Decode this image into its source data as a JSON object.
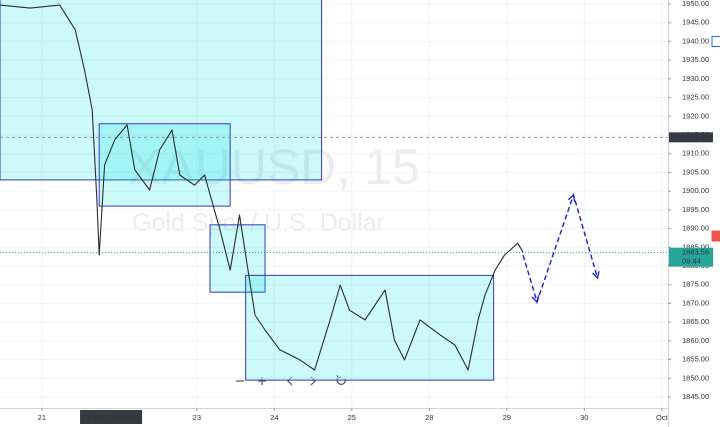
{
  "chart_data": {
    "type": "line",
    "title": "XAUUSD, 15",
    "subtitle": "Gold Spot / U.S. Dollar",
    "color": "#2b2b2b",
    "x": [
      -0.54,
      -0.15,
      0.23,
      0.43,
      0.55,
      0.65,
      0.71,
      0.74,
      0.81,
      0.94,
      1.1,
      1.2,
      1.39,
      1.52,
      1.68,
      1.78,
      1.97,
      2.1,
      2.19,
      2.3,
      2.43,
      2.55,
      2.66,
      2.75,
      2.88,
      3.07,
      3.33,
      3.52,
      3.72,
      3.85,
      3.97,
      4.17,
      4.43,
      4.55,
      4.68,
      4.88,
      5.14,
      5.33,
      5.5,
      5.63,
      5.72,
      5.85,
      5.97,
      6.14,
      6.21
    ],
    "values": [
      1949.7,
      1948.9,
      1949.7,
      1943.1,
      1932.4,
      1921.7,
      1897.6,
      1882.9,
      1907.0,
      1913.7,
      1917.7,
      1905.7,
      1900.3,
      1911.0,
      1916.3,
      1904.3,
      1901.6,
      1904.3,
      1897.6,
      1889.6,
      1878.9,
      1893.6,
      1878.9,
      1866.9,
      1862.9,
      1857.6,
      1854.9,
      1852.2,
      1865.6,
      1874.9,
      1868.2,
      1865.6,
      1873.6,
      1860.2,
      1854.9,
      1865.6,
      1861.6,
      1858.9,
      1852.2,
      1865.6,
      1872.3,
      1878.9,
      1882.9,
      1886.1,
      1883.7
    ],
    "xlim": [
      -0.54,
      8.08
    ],
    "ylim": [
      1842.06,
      1951.07
    ],
    "grid": true,
    "xticks": [
      {
        "value": 0,
        "label": "21"
      },
      {
        "value": 2,
        "label": "23"
      },
      {
        "value": 3,
        "label": "24"
      },
      {
        "value": 4,
        "label": "25"
      },
      {
        "value": 5,
        "label": "28"
      },
      {
        "value": 6,
        "label": "29"
      },
      {
        "value": 7,
        "label": "30"
      },
      {
        "value": 8,
        "label": "Oct"
      }
    ],
    "yticks": [
      {
        "value": 1845,
        "label": "1845.00"
      },
      {
        "value": 1850,
        "label": "1850.00"
      },
      {
        "value": 1855,
        "label": "1855.00"
      },
      {
        "value": 1860,
        "label": "1860.00"
      },
      {
        "value": 1865,
        "label": "1865.00"
      },
      {
        "value": 1870,
        "label": "1870.00"
      },
      {
        "value": 1875,
        "label": "1875.00"
      },
      {
        "value": 1880,
        "label": "1880.00"
      },
      {
        "value": 1885,
        "label": "1885.00"
      },
      {
        "value": 1890,
        "label": "1890.00"
      },
      {
        "value": 1895,
        "label": "1895.00"
      },
      {
        "value": 1900,
        "label": "1900.00"
      },
      {
        "value": 1905,
        "label": "1905.00"
      },
      {
        "value": 1910,
        "label": "1910.00"
      },
      {
        "value": 1915,
        "label": "1915.00"
      },
      {
        "value": 1920,
        "label": "1920.00"
      },
      {
        "value": 1925,
        "label": "1925.00"
      },
      {
        "value": 1930,
        "label": "1930.00"
      },
      {
        "value": 1935,
        "label": "1935.00"
      },
      {
        "value": 1940,
        "label": "1940.00"
      },
      {
        "value": 1945,
        "label": "1945.00"
      },
      {
        "value": 1950,
        "label": "1950.00"
      }
    ],
    "crosshair": {
      "price": 1914.38,
      "x": 0.88,
      "date_label": "21 Sep '20",
      "time_label": "21:00"
    },
    "last_price": {
      "value": 1883.56,
      "countdown": "09:44",
      "color": "#26a69a"
    },
    "price_markers": [
      {
        "value": 1888,
        "color": "#ef5350"
      },
      {
        "value": 1940,
        "color": "#2962ff"
      }
    ],
    "rectangles": [
      {
        "x": [
          -0.54,
          3.61
        ],
        "y": [
          1903,
          1960
        ]
      },
      {
        "x": [
          0.74,
          2.43
        ],
        "y": [
          1896,
          1918
        ]
      },
      {
        "x": [
          2.17,
          2.88
        ],
        "y": [
          1873,
          1891
        ]
      },
      {
        "x": [
          2.63,
          5.83
        ],
        "y": [
          1849.5,
          1877.5
        ]
      }
    ],
    "rect_fill": "rgba(0,225,225,0.2)",
    "rect_border": "#3535c8",
    "forecast": {
      "x": [
        6.21,
        6.39,
        6.86,
        7.17
      ],
      "y": [
        1882.9,
        1870.4,
        1899.0,
        1876.8
      ],
      "color": "#1a1ad6"
    }
  }
}
